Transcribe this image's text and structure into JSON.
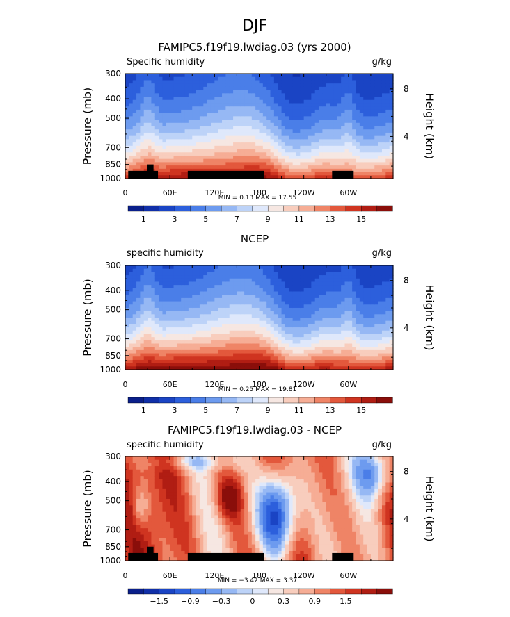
{
  "figure_title": "DJF",
  "colors": {
    "palette": [
      "#0a1f8a",
      "#102fa8",
      "#1a44c4",
      "#2c5fdc",
      "#4a7ee8",
      "#6d9bef",
      "#96b8f4",
      "#bdd3f8",
      "#dfe8fb",
      "#f6e7e2",
      "#f8cdbd",
      "#f6ad95",
      "#ef8466",
      "#e3583c",
      "#cf3420",
      "#b01d13",
      "#8a0e0a"
    ],
    "land": "#000000"
  },
  "chart_data": [
    {
      "type": "heatmap",
      "title": "FAMIPC5.f19f19.lwdiag.03 (yrs 2000)",
      "variable": "Specific humidity",
      "units": "g/kg",
      "ylabel": "Pressure (mb)",
      "ylabel_right": "Height (km)",
      "yticks": [
        "300",
        "400",
        "500",
        "700",
        "850",
        "1000"
      ],
      "yticks_right": [
        "8",
        "4"
      ],
      "xticks": [
        "0",
        "60E",
        "120E",
        "180",
        "120W",
        "60W"
      ],
      "stats": "MIN =    0.13   MAX =   17.55",
      "colorbar_labels": [
        "1",
        "3",
        "5",
        "7",
        "9",
        "11",
        "13",
        "15"
      ],
      "levels": [
        0,
        1,
        2,
        3,
        4,
        5,
        6,
        7,
        8,
        9,
        10,
        11,
        12,
        13,
        14,
        15,
        16
      ],
      "min": 0.13,
      "max": 17.55
    },
    {
      "type": "heatmap",
      "title": "NCEP",
      "variable": "specific humidity",
      "units": "g/kg",
      "ylabel": "Pressure (mb)",
      "ylabel_right": "Height (km)",
      "yticks": [
        "300",
        "400",
        "500",
        "700",
        "850",
        "1000"
      ],
      "yticks_right": [
        "8",
        "4"
      ],
      "xticks": [
        "0",
        "60E",
        "120E",
        "180",
        "120W",
        "60W"
      ],
      "stats": "MIN =    0.25   MAX =   19.81",
      "colorbar_labels": [
        "1",
        "3",
        "5",
        "7",
        "9",
        "11",
        "13",
        "15"
      ],
      "levels": [
        0,
        1,
        2,
        3,
        4,
        5,
        6,
        7,
        8,
        9,
        10,
        11,
        12,
        13,
        14,
        15,
        16
      ],
      "min": 0.25,
      "max": 19.81
    },
    {
      "type": "heatmap",
      "title": "FAMIPC5.f19f19.lwdiag.03 - NCEP",
      "variable": "specific humidity",
      "units": "g/kg",
      "ylabel": "Pressure (mb)",
      "ylabel_right": "Height (km)",
      "yticks": [
        "300",
        "400",
        "500",
        "700",
        "850",
        "1000"
      ],
      "yticks_right": [
        "8",
        "4"
      ],
      "xticks": [
        "0",
        "60E",
        "120E",
        "180",
        "120W",
        "60W"
      ],
      "stats": "MIN =   −3.42   MAX =    3.37",
      "colorbar_labels": [
        "−1.5",
        "−0.9",
        "−0.3",
        "0",
        "0.3",
        "0.9",
        "1.5"
      ],
      "levels": [
        -2.1,
        -1.8,
        -1.5,
        -1.2,
        -0.9,
        -0.6,
        -0.3,
        -0.1,
        0.1,
        0.3,
        0.6,
        0.9,
        1.2,
        1.5,
        1.8,
        2.1
      ],
      "min": -3.42,
      "max": 3.37
    }
  ]
}
